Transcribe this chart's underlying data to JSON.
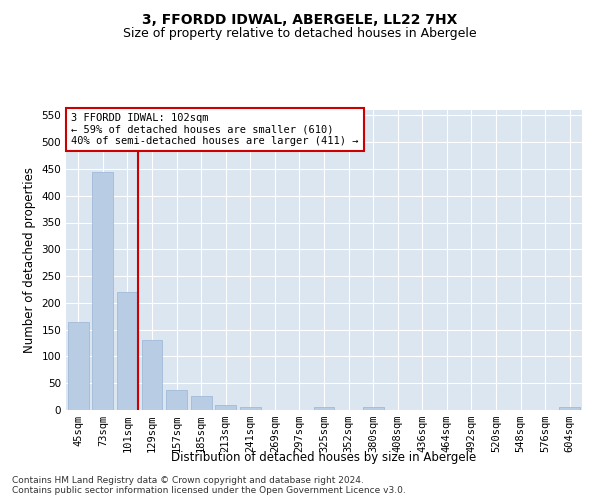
{
  "title": "3, FFORDD IDWAL, ABERGELE, LL22 7HX",
  "subtitle": "Size of property relative to detached houses in Abergele",
  "xlabel": "Distribution of detached houses by size in Abergele",
  "ylabel": "Number of detached properties",
  "categories": [
    "45sqm",
    "73sqm",
    "101sqm",
    "129sqm",
    "157sqm",
    "185sqm",
    "213sqm",
    "241sqm",
    "269sqm",
    "297sqm",
    "325sqm",
    "352sqm",
    "380sqm",
    "408sqm",
    "436sqm",
    "464sqm",
    "492sqm",
    "520sqm",
    "548sqm",
    "576sqm",
    "604sqm"
  ],
  "values": [
    165,
    445,
    220,
    130,
    38,
    26,
    10,
    6,
    0,
    0,
    5,
    0,
    5,
    0,
    0,
    0,
    0,
    0,
    0,
    0,
    5
  ],
  "bar_color": "#b8cce4",
  "bar_edge_color": "#9ab5d5",
  "vline_x_index": 2,
  "vline_color": "#cc0000",
  "annotation_text": "3 FFORDD IDWAL: 102sqm\n← 59% of detached houses are smaller (610)\n40% of semi-detached houses are larger (411) →",
  "annotation_box_color": "white",
  "annotation_box_edge_color": "#cc0000",
  "ylim": [
    0,
    560
  ],
  "yticks": [
    0,
    50,
    100,
    150,
    200,
    250,
    300,
    350,
    400,
    450,
    500,
    550
  ],
  "plot_background": "#dce6f1",
  "grid_color": "white",
  "footer_text": "Contains HM Land Registry data © Crown copyright and database right 2024.\nContains public sector information licensed under the Open Government Licence v3.0.",
  "title_fontsize": 10,
  "subtitle_fontsize": 9,
  "xlabel_fontsize": 8.5,
  "ylabel_fontsize": 8.5,
  "tick_fontsize": 7.5,
  "annotation_fontsize": 7.5,
  "footer_fontsize": 6.5
}
